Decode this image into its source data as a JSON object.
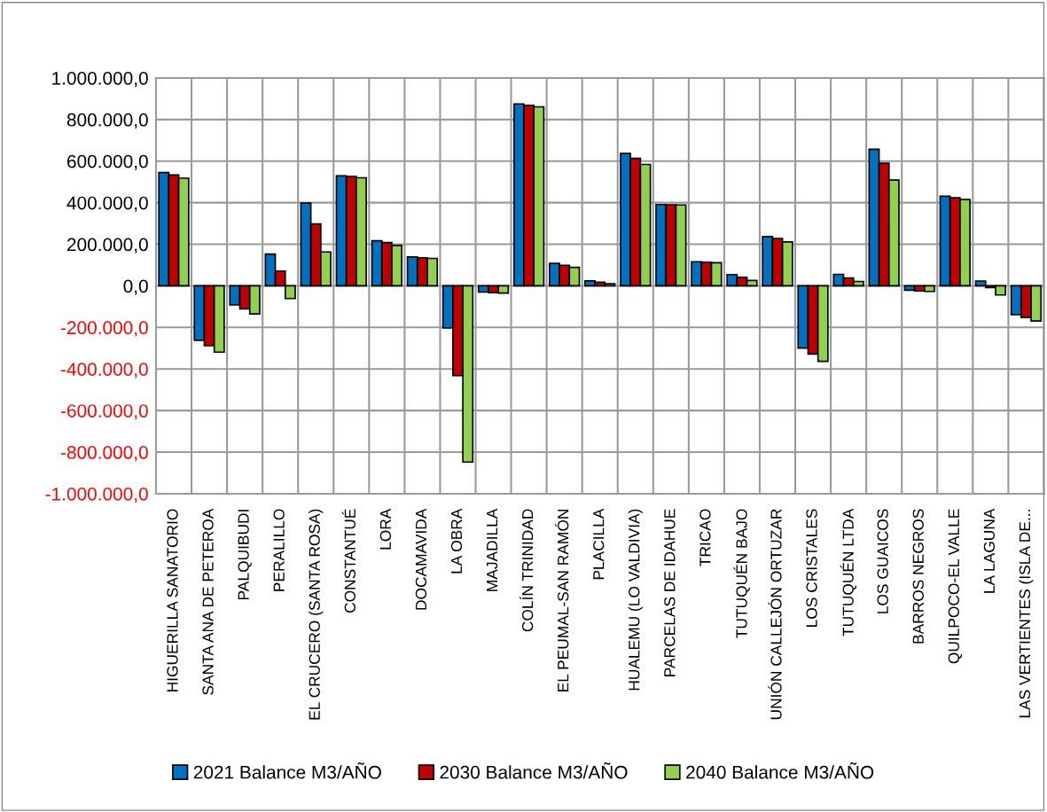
{
  "chart_data": {
    "type": "bar",
    "categories": [
      "HIGUERILLA SANATORIO",
      "SANTA ANA DE PETEROA",
      "PALQUIBUDI",
      "PERALILLO",
      "EL CRUCERO (SANTA ROSA)",
      "CONSTANTUÉ",
      "LORA",
      "DOCAMAVIDA",
      "LA OBRA",
      "MAJADILLA",
      "COLÍN TRINIDAD",
      "EL PEUMAL-SAN RAMÓN",
      "PLACILLA",
      "HUALEMU (LO VALDIVIA)",
      "PARCELAS DE IDAHUE",
      "TRICAO",
      "TUTUQUÉN BAJO",
      "UNIÓN CALLEJÓN ORTUZAR",
      "LOS CRISTALES",
      "TUTUQUÉN LTDA",
      "LOS GUAICOS",
      "BARROS NEGROS",
      "QUILPOCO-EL VALLE",
      "LA LAGUNA",
      "LAS VERTIENTES (ISLA DE..."
    ],
    "series": [
      {
        "name": "2021 Balance M3/AÑO",
        "color": "#0070c0",
        "values": [
          545000,
          -262000,
          -92000,
          153000,
          398000,
          529000,
          217000,
          139000,
          -203000,
          -30000,
          875000,
          108000,
          24000,
          637000,
          391000,
          116000,
          54000,
          237000,
          -299000,
          55000,
          657000,
          -21000,
          431000,
          23000,
          -139000
        ]
      },
      {
        "name": "2030 Balance M3/AÑO",
        "color": "#c00000",
        "values": [
          533000,
          -288000,
          -111000,
          71000,
          298000,
          526000,
          208000,
          135000,
          -432000,
          -33000,
          868000,
          99000,
          17000,
          613000,
          390000,
          113000,
          41000,
          227000,
          -328000,
          38000,
          590000,
          -24000,
          424000,
          -8000,
          -152000
        ]
      },
      {
        "name": "2040 Balance M3/AÑO",
        "color": "#92d050",
        "values": [
          518000,
          -319000,
          -135000,
          -61000,
          163000,
          520000,
          194000,
          132000,
          -848000,
          -35000,
          861000,
          89000,
          10000,
          584000,
          389000,
          111000,
          26000,
          211000,
          -363000,
          21000,
          509000,
          -27000,
          415000,
          -44000,
          -169000
        ]
      }
    ],
    "ylim": [
      -1000000,
      1000000
    ],
    "yticks": [
      {
        "value": -1000000,
        "label": "-1.000.000,0"
      },
      {
        "value": -800000,
        "label": "-800.000,0"
      },
      {
        "value": -600000,
        "label": "-600.000,0"
      },
      {
        "value": -400000,
        "label": "-400.000,0"
      },
      {
        "value": -200000,
        "label": "-200.000,0"
      },
      {
        "value": 0,
        "label": "0,0"
      },
      {
        "value": 200000,
        "label": "200.000,0"
      },
      {
        "value": 400000,
        "label": "400.000,0"
      },
      {
        "value": 600000,
        "label": "600.000,0"
      },
      {
        "value": 800000,
        "label": "800.000,0"
      },
      {
        "value": 1000000,
        "label": "1.000.000,0"
      }
    ],
    "grid": true,
    "legend": "bottom"
  }
}
